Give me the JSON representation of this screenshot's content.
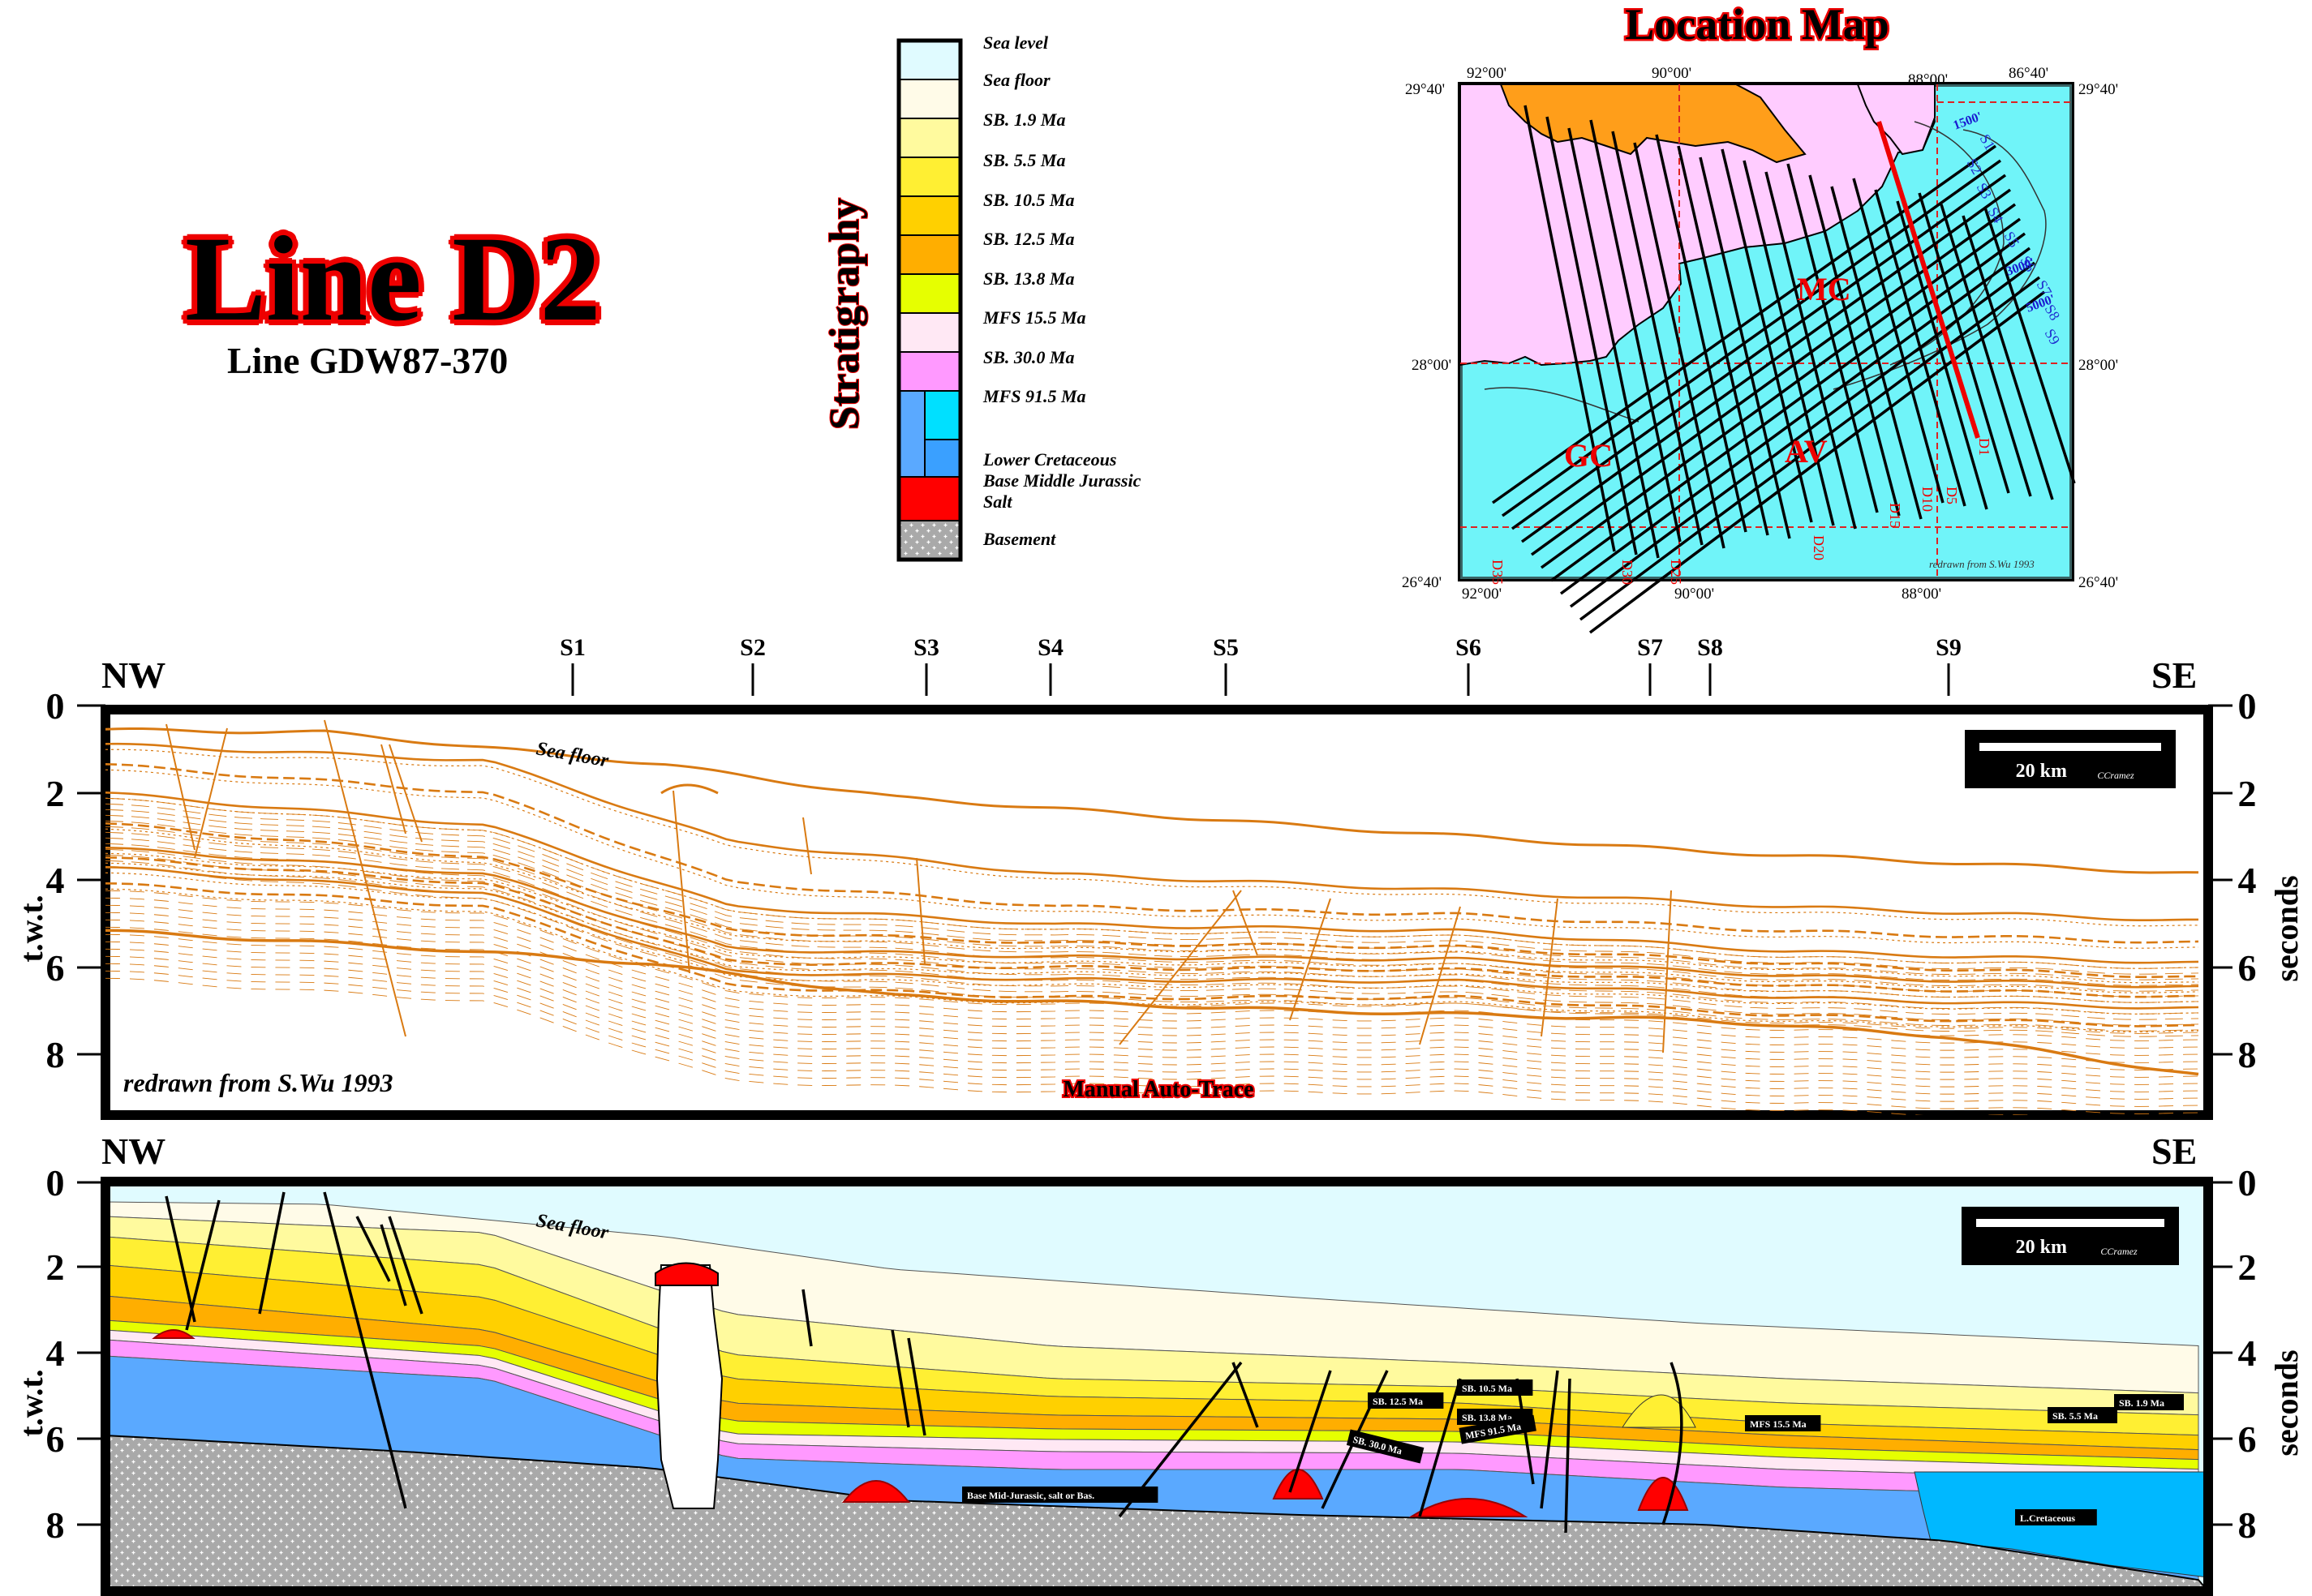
{
  "title": {
    "main": "Line D2",
    "sub": "Line GDW87-370"
  },
  "stratigraphy": {
    "heading": "Stratigraphy",
    "legend": [
      {
        "label": "Sea level",
        "color": "#e0fbff"
      },
      {
        "label": "Sea floor",
        "color": "#fffbe8"
      },
      {
        "label": "SB. 1.9 Ma",
        "color": "#fffa9e"
      },
      {
        "label": "SB. 5.5 Ma",
        "color": "#ffef33"
      },
      {
        "label": "SB. 10.5 Ma",
        "color": "#ffd000"
      },
      {
        "label": "SB. 12.5 Ma",
        "color": "#ffae00"
      },
      {
        "label": "SB. 13.8 Ma",
        "color": "#e6ff00"
      },
      {
        "label": "MFS 15.5 Ma",
        "color": "#ffe8f4"
      },
      {
        "label": "SB. 30.0 Ma",
        "color": "#ff99ff"
      },
      {
        "label": "MFS 91.5 Ma",
        "color": "#99ff00"
      },
      {
        "label": "Lower Cretaceous",
        "color": "#5aa9ff"
      },
      {
        "label": "Base Middle Jurassic",
        "color": "#00e0ff"
      },
      {
        "label": "Salt",
        "color": "#ff0000"
      },
      {
        "label": "Basement",
        "color": "#a0a0a0"
      }
    ]
  },
  "location_map": {
    "title": "Location Map",
    "lon_labels": [
      "92°00'",
      "90°00'",
      "88°00'",
      "86°40'"
    ],
    "lat_labels": [
      "29°40'",
      "28°00'",
      "26°40'"
    ],
    "areas": [
      "MC",
      "GC",
      "AV"
    ],
    "d_lines": [
      "D1",
      "D5",
      "D10",
      "D15",
      "D20",
      "D25",
      "D30",
      "D35"
    ],
    "s_lines": [
      "S1",
      "S2",
      "S3",
      "S4",
      "S5",
      "S6",
      "S7",
      "S8",
      "S9"
    ],
    "contours": [
      "1500'",
      "3000'",
      "5000'"
    ],
    "credit": "redrawn from S.Wu 1993"
  },
  "section": {
    "left_end": "NW",
    "right_end": "SE",
    "s_markers": [
      "S1",
      "S2",
      "S3",
      "S4",
      "S5",
      "S6",
      "S7",
      "S8",
      "S9"
    ],
    "y_ticks": [
      "0",
      "2",
      "4",
      "6",
      "8"
    ],
    "y_label_left": "t.w.t.",
    "y_label_right": "seconds",
    "scale_bar": "20 km",
    "scale_author": "CCramez",
    "sea_floor_label": "Sea floor"
  },
  "top_panel": {
    "credit": "redrawn from S.Wu 1993",
    "method": "Manual Auto-Trace"
  },
  "bottom_panel": {
    "horizon_labels": [
      "SB. 12.5 Ma",
      "SB. 10.5 Ma",
      "SB. 13.8 Ma",
      "SB. 30.0 Ma",
      "MFS 91.5 Ma",
      "MFS 15.5 Ma",
      "Base Mid-Jurassic, salt or Bas.",
      "SB. 1.9 Ma",
      "SB. 5.5 Ma",
      "L.Cretaceous"
    ]
  }
}
